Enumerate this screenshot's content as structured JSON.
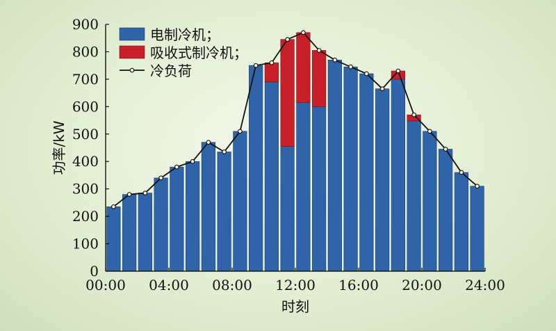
{
  "colors": {
    "electric": "#2f64a8",
    "absorption": "#c8202a",
    "load_line": "#111111",
    "load_marker_fill": "#f4f2dc"
  },
  "chart_data": {
    "type": "bar",
    "stacked": true,
    "xlabel": "时刻",
    "ylabel": "功率/kW",
    "ylim": [
      0,
      900
    ],
    "yticks": [
      0,
      100,
      200,
      300,
      400,
      500,
      600,
      700,
      800,
      900
    ],
    "xlim": [
      0,
      24
    ],
    "xticks": [
      "00:00",
      "04:00",
      "08:00",
      "12:00",
      "16:00",
      "20:00",
      "24:00"
    ],
    "x": [
      0.5,
      1.5,
      2.5,
      3.5,
      4.5,
      5.5,
      6.5,
      7.5,
      8.5,
      9.5,
      10.5,
      11.5,
      12.5,
      13.5,
      14.5,
      15.5,
      16.5,
      17.5,
      18.5,
      19.5,
      20.5,
      21.5,
      22.5,
      23.5
    ],
    "grid": false,
    "legend_position": "top-left",
    "series": [
      {
        "name": "电制冷机；",
        "kind": "bar",
        "values": [
          235,
          280,
          285,
          340,
          380,
          400,
          470,
          435,
          510,
          750,
          690,
          455,
          615,
          600,
          770,
          745,
          720,
          665,
          700,
          548,
          510,
          445,
          360,
          310
        ]
      },
      {
        "name": "吸收式制冷机；",
        "kind": "bar",
        "values": [
          0,
          0,
          0,
          0,
          0,
          0,
          0,
          0,
          0,
          0,
          70,
          390,
          255,
          205,
          0,
          0,
          0,
          0,
          30,
          22,
          0,
          0,
          0,
          0
        ]
      },
      {
        "name": "冷负荷",
        "kind": "line",
        "values": [
          235,
          280,
          285,
          340,
          380,
          400,
          470,
          435,
          510,
          750,
          760,
          845,
          870,
          805,
          770,
          745,
          720,
          665,
          730,
          570,
          510,
          445,
          360,
          310
        ]
      }
    ]
  }
}
